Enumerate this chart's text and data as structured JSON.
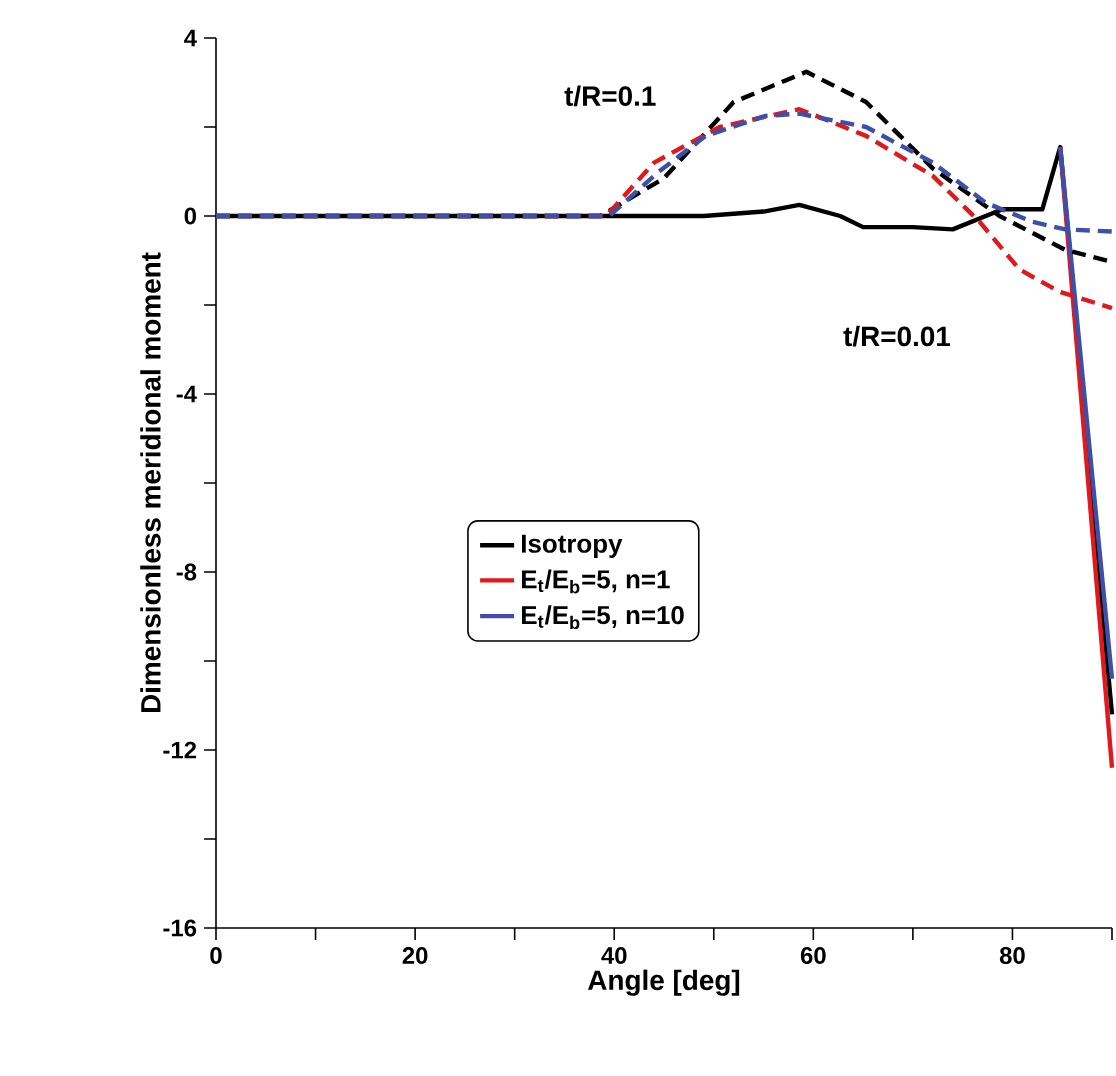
{
  "chart_data": {
    "type": "line",
    "xlabel": "Angle [deg]",
    "ylabel": "Dimensionless meridional moment",
    "xlim": [
      0,
      90
    ],
    "ylim": [
      -16,
      4
    ],
    "xticks": [
      0,
      {
        "value": 10,
        "label": null
      },
      20,
      {
        "value": 30,
        "label": null
      },
      40,
      {
        "value": 50,
        "label": null
      },
      60,
      {
        "value": 70,
        "label": null
      },
      80,
      {
        "value": 90,
        "label": null
      }
    ],
    "yticks": [
      -16,
      {
        "value": -14,
        "label": null
      },
      -12,
      {
        "value": -10,
        "label": null
      },
      -8,
      {
        "value": -6,
        "label": null
      },
      -4,
      {
        "value": -2,
        "label": null
      },
      0,
      {
        "value": 2,
        "label": null
      },
      4
    ],
    "grid": false,
    "legend": "center",
    "marker": "none",
    "annotations": [
      "t/R=0.1",
      "t/R=0.01"
    ],
    "series": [
      {
        "name": "Isotropy",
        "color": "#000000",
        "line_style": "solid",
        "x": [
          0,
          20,
          40,
          49,
          55,
          58.6,
          62.7,
          65,
          70,
          74,
          79,
          83,
          84.8,
          90
        ],
        "values": [
          0,
          0,
          0,
          0,
          0.1,
          0.25,
          0,
          -0.25,
          -0.25,
          -0.3,
          0.15,
          0.15,
          1.55,
          -11.2
        ]
      },
      {
        "name": "E$_{t}$/E$_{b}$=5, n=1",
        "color": "#e0191c",
        "line_style": "solid",
        "x": [
          84.8,
          90
        ],
        "values": [
          1.55,
          -12.4
        ]
      },
      {
        "name": "E$_{t}$/E$_{b}$=5, n=10",
        "color": "#3d4fa8",
        "line_style": "solid",
        "x": [
          84.8,
          90
        ],
        "values": [
          1.55,
          -10.4
        ]
      },
      {
        "color": "#000000",
        "line_style": "dashed",
        "x": [
          0,
          20,
          38.6,
          45,
          52,
          59.3,
          65.3,
          72,
          78.7,
          85.3,
          90
        ],
        "values": [
          0,
          0,
          0,
          0.85,
          2.56,
          3.24,
          2.56,
          1.07,
          0,
          -0.76,
          -1.03
        ]
      },
      {
        "color": "#e0191c",
        "line_style": "dashed",
        "x": [
          0,
          20,
          39.2,
          44,
          50.6,
          58.6,
          65.3,
          72,
          76.7,
          80.7,
          84.7,
          90
        ],
        "values": [
          0,
          0,
          0,
          1.2,
          2.0,
          2.4,
          1.8,
          0.9,
          -0.13,
          -1.2,
          -1.7,
          -2.07
        ]
      },
      {
        "color": "#3d4fa8",
        "line_style": "dashed",
        "x": [
          0,
          20,
          39.5,
          44.5,
          49.2,
          55.2,
          58.6,
          65.3,
          72,
          77.3,
          82,
          85.3,
          90
        ],
        "values": [
          0,
          0,
          0,
          1.0,
          1.8,
          2.25,
          2.3,
          2.0,
          1.2,
          0.3,
          -0.13,
          -0.3,
          -0.35
        ]
      }
    ]
  }
}
